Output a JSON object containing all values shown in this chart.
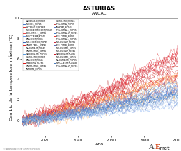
{
  "title": "ASTURIAS",
  "subtitle": "ANUAL",
  "xlabel": "Año",
  "ylabel": "Cambio de la temperatura máxima (°C)",
  "xlim": [
    2006,
    2100
  ],
  "ylim": [
    -1.5,
    10
  ],
  "yticks": [
    0,
    2,
    4,
    6,
    8,
    10
  ],
  "xticks": [
    2020,
    2040,
    2060,
    2080,
    2100
  ],
  "x_start": 2006,
  "x_end": 2100,
  "n_years": 95,
  "legend_labels_left": [
    "ACCESS1.0_RCP85",
    "ACCESS1.3_RCP85",
    "BCC-CSM1.1_RCP85",
    "BNU-ESM_RCP85",
    "CNRM-CM5A_RCP85",
    "CNRM-CM5B_RCP85",
    "CSIRO-MK3_RCP85",
    "HadGEM2_RCP85",
    "INMCM4_RCP85",
    "IPSL-CM5A_RCP85",
    "IPSL-CM5A.1_RCP85",
    "IPSL-CM5B_RCP85",
    "MPI-ESM-LR_RCP85",
    "MPI-ESM-MR_RCP85",
    "NorESM1-M_RCP85",
    "NorESM1-ME_RCP85",
    "IPSL-CM5A.LR_RCP85"
  ],
  "legend_labels_right": [
    "MIROC5_RCP45",
    "MIROC-ESM-CHEM_RCP45",
    "MIROC-ESM_RCP45",
    "MRI-CGCM3.0_RCP45",
    "NorESM1-M_RCP45",
    "NorESM1-ME_RCP45",
    "BNU-ESM_RCP45",
    "CNRM-CM5B_RCP45",
    "CSIRO-MK3_RCP45",
    "INMCM4_RCP45",
    "IPSL-CM5A.LR_RCP45",
    "IPSL-CM5A.1_RCP45",
    "IPSL-CM5B_RCP45",
    "MPI-ESM-LR_RCP45",
    "MPI-ESM-MR_RCP45",
    "MIROC-ESM_RCP45b"
  ],
  "red_colors": [
    "#cc2222",
    "#dd3333",
    "#ee4444",
    "#cc1111",
    "#dd2222",
    "#bb1111",
    "#cc3333",
    "#dd1111",
    "#ee2222",
    "#cc4444",
    "#dd0000",
    "#ee3333",
    "#cc2233",
    "#dd3344",
    "#cc1122",
    "#bb2222",
    "#dd2233",
    "#ee1122",
    "#cc3322",
    "#bb3333"
  ],
  "blue_colors": [
    "#4477cc",
    "#5588dd",
    "#6699ee",
    "#3366bb",
    "#4488cc",
    "#5599dd",
    "#6688cc",
    "#7799dd",
    "#4466bb",
    "#5577cc",
    "#3377cc",
    "#4488dd",
    "#5566bb",
    "#6677cc",
    "#7788dd",
    "#4477bb",
    "#5588cc",
    "#6699cc",
    "#3366cc",
    "#4499dd"
  ],
  "orange_colors": [
    "#ff9944",
    "#ffaa55",
    "#ffbb66",
    "#ffcc77",
    "#ff8833",
    "#ffaa44",
    "#ffbb55",
    "#ff9933"
  ],
  "lightblue_color": "#aaccee",
  "title_fontsize": 6,
  "subtitle_fontsize": 4.5,
  "axis_label_fontsize": 4.5,
  "tick_fontsize": 4,
  "legend_fontsize": 2.2
}
